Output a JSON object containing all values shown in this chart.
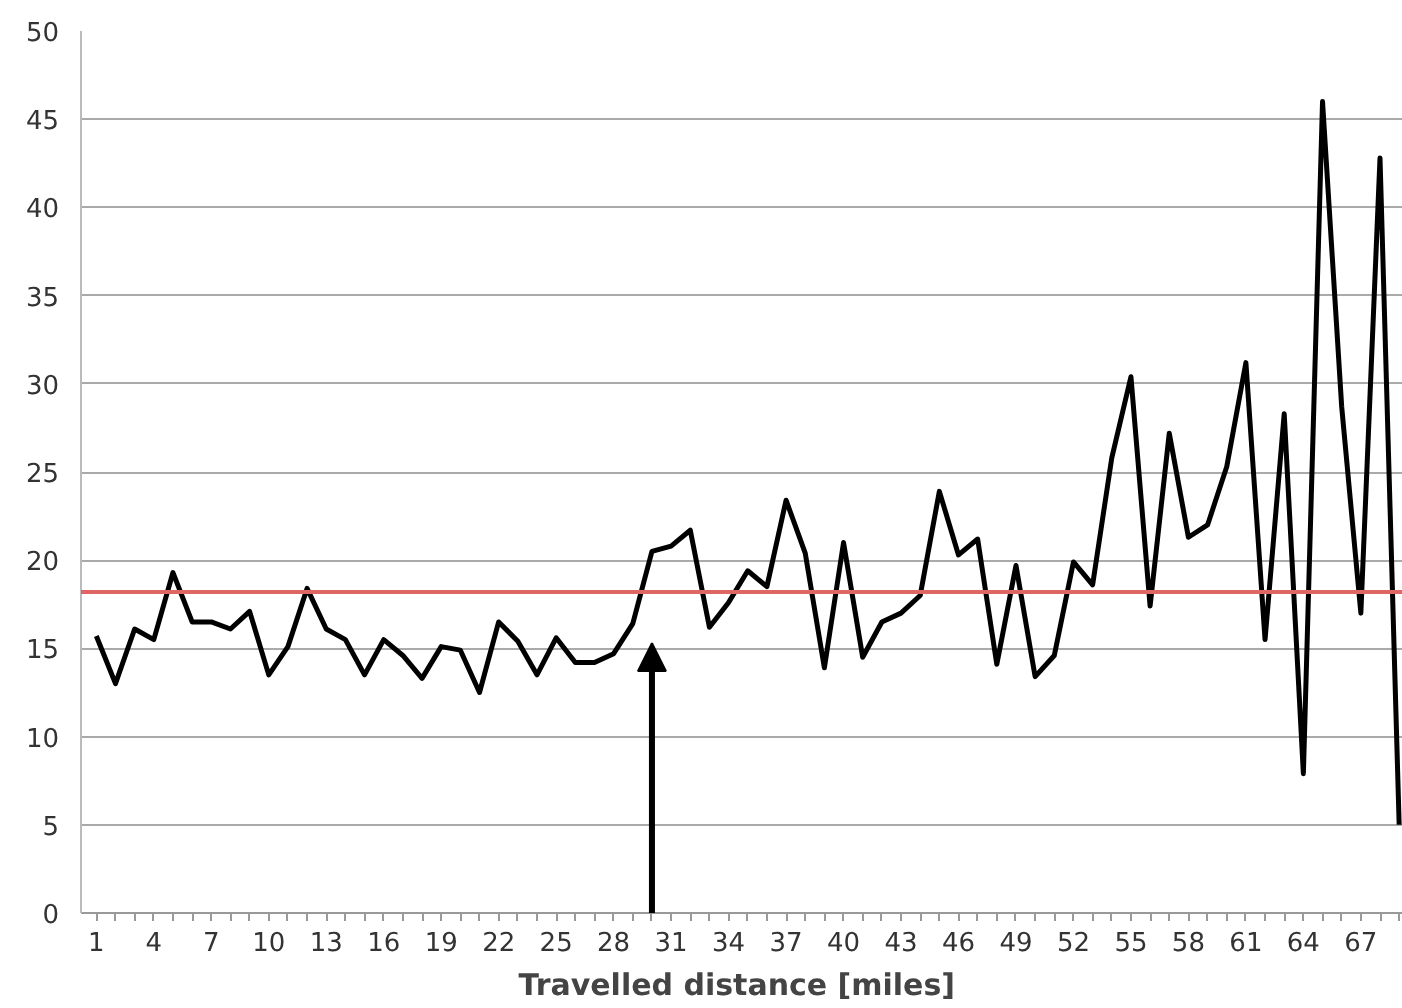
{
  "chart_data": {
    "type": "line",
    "xlabel": "Travelled distance  [miles]",
    "categories": [
      "1",
      null,
      null,
      "4",
      null,
      null,
      "7",
      null,
      null,
      "10",
      null,
      null,
      "13",
      null,
      null,
      "16",
      null,
      null,
      "19",
      null,
      null,
      "22",
      null,
      null,
      "25",
      null,
      null,
      "28",
      null,
      null,
      "31",
      null,
      null,
      "34",
      null,
      null,
      "37",
      null,
      null,
      "40",
      null,
      null,
      "43",
      null,
      null,
      "46",
      null,
      null,
      "49",
      null,
      null,
      "52",
      null,
      null,
      "55",
      null,
      null,
      "58",
      null,
      null,
      "61",
      null,
      null,
      "64",
      null,
      null,
      "67",
      null,
      null
    ],
    "series": [
      {
        "color": "#000000",
        "values": [
          15.7,
          13.0,
          16.1,
          15.5,
          19.3,
          16.5,
          16.5,
          16.1,
          17.1,
          13.5,
          15.1,
          18.4,
          16.1,
          15.5,
          13.5,
          15.5,
          14.6,
          13.3,
          15.1,
          14.9,
          12.5,
          16.5,
          15.4,
          13.5,
          15.6,
          14.2,
          14.2,
          14.7,
          16.4,
          20.5,
          20.8,
          21.7,
          16.2,
          17.6,
          19.4,
          18.5,
          23.4,
          20.4,
          13.9,
          21.0,
          14.5,
          16.5,
          17.0,
          18.0,
          23.9,
          20.3,
          21.2,
          14.1,
          19.7,
          13.4,
          14.6,
          19.9,
          18.6,
          25.8,
          30.4,
          17.4,
          27.2,
          21.3,
          22.0,
          25.3,
          31.2,
          15.5,
          28.3,
          7.9,
          46.0,
          28.7,
          17.0,
          42.8,
          5.0
        ]
      }
    ],
    "ylim": [
      0,
      50
    ],
    "yticks": [
      0,
      5,
      10,
      15,
      20,
      25,
      30,
      35,
      40,
      45,
      50
    ],
    "grid": "y",
    "marker": "none",
    "line_style": "solid",
    "ref_lines": [
      {
        "axis": "y",
        "value": 18.2,
        "color": "#e06666"
      }
    ]
  }
}
